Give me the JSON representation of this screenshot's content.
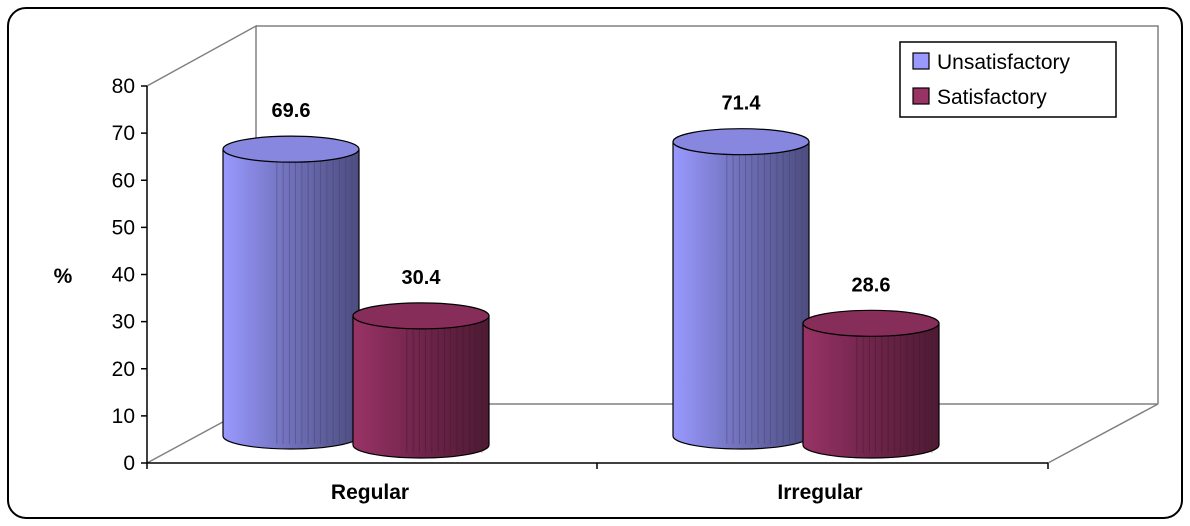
{
  "chart_data": {
    "type": "bar",
    "title": "",
    "xlabel": "",
    "ylabel": "%",
    "ylim": [
      0,
      80
    ],
    "yticks": [
      0,
      10,
      20,
      30,
      40,
      50,
      60,
      70,
      80
    ],
    "categories": [
      "Regular",
      "Irregular"
    ],
    "series": [
      {
        "name": "Unsatisfactory",
        "values": [
          69.6,
          71.4
        ],
        "color": "#9999ff",
        "value_labels": [
          "69.6",
          "71.4"
        ]
      },
      {
        "name": "Satisfactory",
        "values": [
          30.4,
          28.6
        ],
        "color": "#993366",
        "value_labels": [
          "30.4",
          "28.6"
        ]
      }
    ],
    "legend_position": "top-right",
    "style": "3d-cylinder",
    "grid": false
  }
}
